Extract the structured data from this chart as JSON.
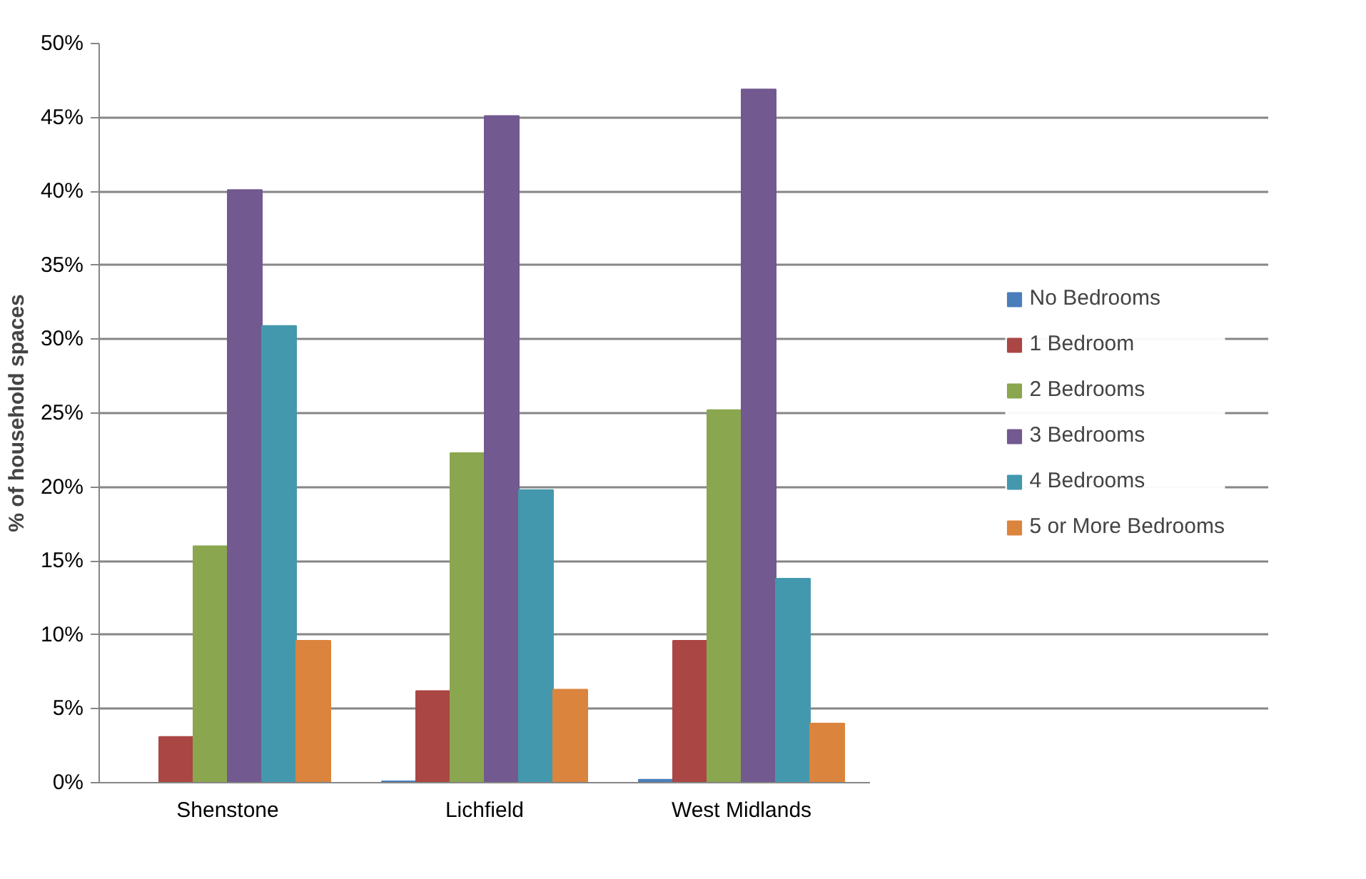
{
  "chart_data": {
    "type": "bar",
    "ylabel": "% of household spaces",
    "categories": [
      "Shenstone",
      "Lichfield",
      "West Midlands"
    ],
    "series": [
      {
        "name": "No Bedrooms",
        "color": "#4a7ebb",
        "values": [
          0,
          0.1,
          0.2
        ]
      },
      {
        "name": "1 Bedroom",
        "color": "#aa4644",
        "values": [
          3.1,
          6.2,
          9.6
        ]
      },
      {
        "name": "2 Bedrooms",
        "color": "#8aa64f",
        "values": [
          16.0,
          22.3,
          25.2
        ]
      },
      {
        "name": "3 Bedrooms",
        "color": "#725990",
        "values": [
          40.1,
          45.1,
          46.9
        ]
      },
      {
        "name": "4 Bedrooms",
        "color": "#4398ae",
        "values": [
          30.9,
          19.8,
          13.8
        ]
      },
      {
        "name": "5 or More Bedrooms",
        "color": "#db843d",
        "values": [
          9.6,
          6.3,
          4.0
        ]
      }
    ],
    "ylim": [
      0,
      50
    ],
    "yticks": [
      {
        "value": 0,
        "label": "0%"
      },
      {
        "value": 5,
        "label": "5%"
      },
      {
        "value": 10,
        "label": "10%"
      },
      {
        "value": 15,
        "label": "15%"
      },
      {
        "value": 20,
        "label": "20%"
      },
      {
        "value": 25,
        "label": "25%"
      },
      {
        "value": 30,
        "label": "30%"
      },
      {
        "value": 35,
        "label": "35%"
      },
      {
        "value": 40,
        "label": "40%"
      },
      {
        "value": 45,
        "label": "45%"
      },
      {
        "value": 50,
        "label": "50%"
      }
    ],
    "grid": "y",
    "legend": "right"
  }
}
